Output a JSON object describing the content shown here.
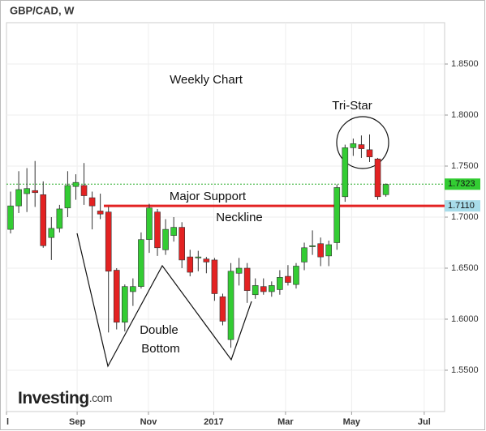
{
  "chart_data": {
    "type": "candlestick",
    "title": "GBP/CAD, W",
    "logo": "Investing",
    "logo_suffix": ".com",
    "categories": [
      null,
      null,
      null,
      null,
      null,
      null,
      null,
      null,
      null,
      null,
      null,
      null,
      null,
      null,
      null,
      null,
      null,
      null,
      null,
      null,
      null,
      null,
      null,
      null,
      null,
      null,
      null,
      null,
      null,
      null,
      null,
      null,
      null,
      null,
      null,
      null,
      null,
      null,
      null,
      null,
      null,
      null,
      null,
      null,
      null,
      null,
      null
    ],
    "open": [
      1.688,
      1.711,
      1.723,
      1.726,
      1.722,
      1.68,
      1.689,
      1.709,
      1.73,
      1.731,
      1.719,
      1.706,
      1.705,
      1.648,
      1.597,
      1.627,
      1.632,
      1.678,
      1.705,
      1.668,
      1.682,
      1.69,
      1.661,
      1.66,
      1.659,
      1.658,
      1.622,
      1.58,
      1.645,
      1.65,
      1.624,
      1.632,
      1.627,
      1.629,
      1.642,
      1.634,
      1.656,
      1.671,
      1.674,
      1.662,
      1.675,
      1.72,
      1.768,
      1.771,
      1.766,
      1.757,
      1.722
    ],
    "high": [
      1.725,
      1.745,
      1.748,
      1.755,
      1.735,
      1.7,
      1.712,
      1.745,
      1.742,
      1.753,
      1.725,
      1.723,
      1.71,
      1.65,
      1.634,
      1.64,
      1.685,
      1.713,
      1.708,
      1.698,
      1.7,
      1.695,
      1.668,
      1.667,
      1.661,
      1.66,
      1.625,
      1.655,
      1.66,
      1.655,
      1.64,
      1.64,
      1.637,
      1.648,
      1.653,
      1.655,
      1.675,
      1.687,
      1.68,
      1.677,
      1.732,
      1.771,
      1.777,
      1.78,
      1.781,
      1.758,
      1.733
    ],
    "low": [
      1.684,
      1.704,
      1.705,
      1.71,
      1.67,
      1.658,
      1.685,
      1.7,
      1.717,
      1.712,
      1.688,
      1.698,
      1.587,
      1.59,
      1.588,
      1.613,
      1.63,
      1.665,
      1.662,
      1.663,
      1.676,
      1.65,
      1.642,
      1.647,
      1.645,
      1.618,
      1.594,
      1.572,
      1.633,
      1.616,
      1.62,
      1.624,
      1.622,
      1.624,
      1.633,
      1.63,
      1.648,
      1.663,
      1.652,
      1.652,
      1.668,
      1.715,
      1.76,
      1.758,
      1.754,
      1.717,
      1.72
    ],
    "close": [
      1.711,
      1.727,
      1.728,
      1.724,
      1.672,
      1.689,
      1.708,
      1.731,
      1.734,
      1.721,
      1.711,
      1.703,
      1.647,
      1.597,
      1.632,
      1.632,
      1.678,
      1.709,
      1.67,
      1.688,
      1.69,
      1.658,
      1.646,
      1.661,
      1.656,
      1.625,
      1.598,
      1.647,
      1.65,
      1.628,
      1.633,
      1.627,
      1.633,
      1.641,
      1.636,
      1.652,
      1.67,
      1.672,
      1.661,
      1.673,
      1.729,
      1.768,
      1.772,
      1.767,
      1.759,
      1.72,
      1.732
    ],
    "up_color": "#33cc33",
    "down_color": "#e32222",
    "ylim": [
      1.5095,
      1.8905
    ],
    "yticks": [
      {
        "value": 1.55,
        "label": "1.5500"
      },
      {
        "value": 1.6,
        "label": "1.6000"
      },
      {
        "value": 1.65,
        "label": "1.6500"
      },
      {
        "value": 1.7,
        "label": "1.7000"
      },
      {
        "value": 1.75,
        "label": "1.7500"
      },
      {
        "value": 1.8,
        "label": "1.8000"
      },
      {
        "value": 1.85,
        "label": "1.8500"
      }
    ],
    "xlim": [
      -0.5,
      53.2
    ],
    "xticks": [
      {
        "value": -0.5,
        "label": "l"
      },
      {
        "value": 8.16,
        "label": "Sep"
      },
      {
        "value": 16.9,
        "label": "Nov"
      },
      {
        "value": 24.9,
        "label": "2017"
      },
      {
        "value": 33.7,
        "label": "Mar"
      },
      {
        "value": 41.8,
        "label": "May"
      },
      {
        "value": 50.7,
        "label": "Jul"
      }
    ],
    "grid": true,
    "levels": [
      {
        "value": 1.7323,
        "label": "1.7323",
        "color": "#22aa22",
        "style": "dotted"
      },
      {
        "value": 1.711,
        "label": "1.7110",
        "color": "#e32222",
        "style": "solid"
      }
    ],
    "annotations": [
      "Weekly Chart",
      "Tri-Star",
      "Major Support",
      "Neckline",
      "Double",
      "Bottom"
    ]
  }
}
